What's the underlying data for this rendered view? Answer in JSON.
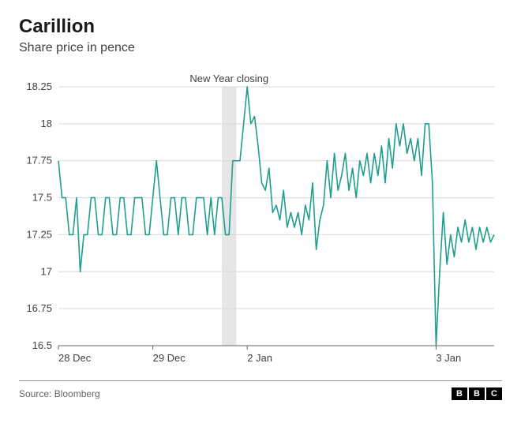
{
  "title": "Carillion",
  "subtitle": "Share price in pence",
  "source": "Source: Bloomberg",
  "logo_letters": [
    "B",
    "B",
    "C"
  ],
  "chart": {
    "type": "line",
    "line_color": "#1f9e8e",
    "line_width": 1.6,
    "background_color": "#ffffff",
    "grid_color": "#d9d9d9",
    "grid_width": 1,
    "axis_color": "#666666",
    "ylim": [
      16.5,
      18.25
    ],
    "ytick_step": 0.25,
    "y_ticks": [
      16.5,
      16.75,
      17,
      17.25,
      17.5,
      17.75,
      18,
      18.25
    ],
    "x_ticks": [
      {
        "pos": 0,
        "label": "28 Dec"
      },
      {
        "pos": 26,
        "label": "29 Dec"
      },
      {
        "pos": 52,
        "label": "2 Jan"
      },
      {
        "pos": 104,
        "label": "3 Jan"
      }
    ],
    "x_range": [
      0,
      120
    ],
    "annotation": {
      "label": "New Year closing",
      "band_x": [
        45,
        49
      ],
      "band_color": "#e6e6e6"
    },
    "title_fontsize": 24,
    "subtitle_fontsize": 16,
    "label_fontsize": 13,
    "series": [
      {
        "x": 0,
        "y": 17.75
      },
      {
        "x": 1,
        "y": 17.5
      },
      {
        "x": 2,
        "y": 17.5
      },
      {
        "x": 3,
        "y": 17.25
      },
      {
        "x": 4,
        "y": 17.25
      },
      {
        "x": 5,
        "y": 17.5
      },
      {
        "x": 6,
        "y": 17.0
      },
      {
        "x": 7,
        "y": 17.25
      },
      {
        "x": 8,
        "y": 17.25
      },
      {
        "x": 9,
        "y": 17.5
      },
      {
        "x": 10,
        "y": 17.5
      },
      {
        "x": 11,
        "y": 17.25
      },
      {
        "x": 12,
        "y": 17.25
      },
      {
        "x": 13,
        "y": 17.5
      },
      {
        "x": 14,
        "y": 17.5
      },
      {
        "x": 15,
        "y": 17.25
      },
      {
        "x": 16,
        "y": 17.25
      },
      {
        "x": 17,
        "y": 17.5
      },
      {
        "x": 18,
        "y": 17.5
      },
      {
        "x": 19,
        "y": 17.25
      },
      {
        "x": 20,
        "y": 17.25
      },
      {
        "x": 21,
        "y": 17.5
      },
      {
        "x": 22,
        "y": 17.5
      },
      {
        "x": 23,
        "y": 17.5
      },
      {
        "x": 24,
        "y": 17.25
      },
      {
        "x": 25,
        "y": 17.25
      },
      {
        "x": 26,
        "y": 17.5
      },
      {
        "x": 27,
        "y": 17.75
      },
      {
        "x": 28,
        "y": 17.5
      },
      {
        "x": 29,
        "y": 17.25
      },
      {
        "x": 30,
        "y": 17.25
      },
      {
        "x": 31,
        "y": 17.5
      },
      {
        "x": 32,
        "y": 17.5
      },
      {
        "x": 33,
        "y": 17.25
      },
      {
        "x": 34,
        "y": 17.5
      },
      {
        "x": 35,
        "y": 17.5
      },
      {
        "x": 36,
        "y": 17.25
      },
      {
        "x": 37,
        "y": 17.25
      },
      {
        "x": 38,
        "y": 17.5
      },
      {
        "x": 39,
        "y": 17.5
      },
      {
        "x": 40,
        "y": 17.5
      },
      {
        "x": 41,
        "y": 17.25
      },
      {
        "x": 42,
        "y": 17.5
      },
      {
        "x": 43,
        "y": 17.25
      },
      {
        "x": 44,
        "y": 17.5
      },
      {
        "x": 45,
        "y": 17.5
      },
      {
        "x": 46,
        "y": 17.25
      },
      {
        "x": 47,
        "y": 17.25
      },
      {
        "x": 48,
        "y": 17.75
      },
      {
        "x": 49,
        "y": 17.75
      },
      {
        "x": 50,
        "y": 17.75
      },
      {
        "x": 51,
        "y": 18.0
      },
      {
        "x": 52,
        "y": 18.25
      },
      {
        "x": 53,
        "y": 18.0
      },
      {
        "x": 54,
        "y": 18.05
      },
      {
        "x": 55,
        "y": 17.85
      },
      {
        "x": 56,
        "y": 17.6
      },
      {
        "x": 57,
        "y": 17.55
      },
      {
        "x": 58,
        "y": 17.7
      },
      {
        "x": 59,
        "y": 17.4
      },
      {
        "x": 60,
        "y": 17.45
      },
      {
        "x": 61,
        "y": 17.35
      },
      {
        "x": 62,
        "y": 17.55
      },
      {
        "x": 63,
        "y": 17.3
      },
      {
        "x": 64,
        "y": 17.4
      },
      {
        "x": 65,
        "y": 17.3
      },
      {
        "x": 66,
        "y": 17.4
      },
      {
        "x": 67,
        "y": 17.25
      },
      {
        "x": 68,
        "y": 17.45
      },
      {
        "x": 69,
        "y": 17.35
      },
      {
        "x": 70,
        "y": 17.6
      },
      {
        "x": 71,
        "y": 17.15
      },
      {
        "x": 72,
        "y": 17.35
      },
      {
        "x": 73,
        "y": 17.45
      },
      {
        "x": 74,
        "y": 17.75
      },
      {
        "x": 75,
        "y": 17.5
      },
      {
        "x": 76,
        "y": 17.8
      },
      {
        "x": 77,
        "y": 17.55
      },
      {
        "x": 78,
        "y": 17.65
      },
      {
        "x": 79,
        "y": 17.8
      },
      {
        "x": 80,
        "y": 17.55
      },
      {
        "x": 81,
        "y": 17.7
      },
      {
        "x": 82,
        "y": 17.5
      },
      {
        "x": 83,
        "y": 17.75
      },
      {
        "x": 84,
        "y": 17.65
      },
      {
        "x": 85,
        "y": 17.8
      },
      {
        "x": 86,
        "y": 17.6
      },
      {
        "x": 87,
        "y": 17.8
      },
      {
        "x": 88,
        "y": 17.65
      },
      {
        "x": 89,
        "y": 17.85
      },
      {
        "x": 90,
        "y": 17.6
      },
      {
        "x": 91,
        "y": 17.9
      },
      {
        "x": 92,
        "y": 17.7
      },
      {
        "x": 93,
        "y": 18.0
      },
      {
        "x": 94,
        "y": 17.85
      },
      {
        "x": 95,
        "y": 18.0
      },
      {
        "x": 96,
        "y": 17.8
      },
      {
        "x": 97,
        "y": 17.9
      },
      {
        "x": 98,
        "y": 17.75
      },
      {
        "x": 99,
        "y": 17.9
      },
      {
        "x": 100,
        "y": 17.65
      },
      {
        "x": 101,
        "y": 18.0
      },
      {
        "x": 102,
        "y": 18.0
      },
      {
        "x": 103,
        "y": 17.6
      },
      {
        "x": 104,
        "y": 16.5
      },
      {
        "x": 105,
        "y": 17.0
      },
      {
        "x": 106,
        "y": 17.4
      },
      {
        "x": 107,
        "y": 17.05
      },
      {
        "x": 108,
        "y": 17.25
      },
      {
        "x": 109,
        "y": 17.1
      },
      {
        "x": 110,
        "y": 17.3
      },
      {
        "x": 111,
        "y": 17.2
      },
      {
        "x": 112,
        "y": 17.35
      },
      {
        "x": 113,
        "y": 17.2
      },
      {
        "x": 114,
        "y": 17.3
      },
      {
        "x": 115,
        "y": 17.15
      },
      {
        "x": 116,
        "y": 17.3
      },
      {
        "x": 117,
        "y": 17.2
      },
      {
        "x": 118,
        "y": 17.3
      },
      {
        "x": 119,
        "y": 17.2
      },
      {
        "x": 120,
        "y": 17.25
      }
    ]
  }
}
